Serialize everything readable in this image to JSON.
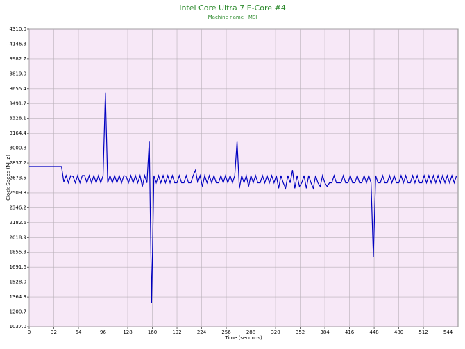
{
  "chart_data": {
    "type": "line",
    "title": "Intel Core Ultra 7 E-Core #4",
    "subtitle": "Machine name : MSI",
    "xlabel": "Time (seconds)",
    "ylabel": "Clock Speed (MHz)",
    "xlim": [
      0,
      557
    ],
    "ylim": [
      1037.0,
      4310.0
    ],
    "xticks": [
      0,
      32,
      64,
      96,
      128,
      160,
      192,
      224,
      256,
      288,
      320,
      352,
      384,
      416,
      448,
      480,
      512,
      544
    ],
    "yticks": [
      {
        "value": 1037.0,
        "label": "1037.0"
      },
      1200.7,
      1364.3,
      {
        "value": 1528.0,
        "label": "1528.0"
      },
      1691.6,
      1855.3,
      2018.9,
      2182.6,
      2346.2,
      2509.8,
      2673.5,
      2837.2,
      3000.8,
      3164.4,
      3328.1,
      3491.7,
      3655.4,
      {
        "value": 3819.0,
        "label": "3819.0"
      },
      3982.7,
      4146.3,
      {
        "value": 4310.0,
        "label": "4310.0"
      }
    ],
    "grid": true,
    "x": [
      0,
      3,
      6,
      9,
      12,
      15,
      18,
      21,
      24,
      27,
      30,
      33,
      36,
      39,
      42,
      45,
      48,
      51,
      54,
      57,
      60,
      63,
      66,
      69,
      72,
      75,
      78,
      81,
      84,
      87,
      90,
      93,
      96,
      99,
      102,
      105,
      108,
      111,
      114,
      117,
      120,
      123,
      126,
      129,
      132,
      135,
      138,
      141,
      144,
      147,
      150,
      153,
      156,
      159,
      162,
      165,
      168,
      171,
      174,
      177,
      180,
      183,
      186,
      189,
      192,
      195,
      198,
      201,
      204,
      207,
      210,
      213,
      216,
      219,
      222,
      225,
      228,
      231,
      234,
      237,
      240,
      243,
      246,
      249,
      252,
      255,
      258,
      261,
      264,
      267,
      270,
      273,
      276,
      279,
      282,
      285,
      288,
      291,
      294,
      297,
      300,
      303,
      306,
      309,
      312,
      315,
      318,
      321,
      324,
      327,
      330,
      333,
      336,
      339,
      342,
      345,
      348,
      351,
      354,
      357,
      360,
      363,
      366,
      369,
      372,
      375,
      378,
      381,
      384,
      387,
      390,
      393,
      396,
      399,
      402,
      405,
      408,
      411,
      414,
      417,
      420,
      423,
      426,
      429,
      432,
      435,
      438,
      441,
      444,
      447,
      450,
      453,
      456,
      459,
      462,
      465,
      468,
      471,
      474,
      477,
      480,
      483,
      486,
      489,
      492,
      495,
      498,
      501,
      504,
      507,
      510,
      513,
      516,
      519,
      522,
      525,
      528,
      531,
      534,
      537,
      540,
      543,
      546,
      549,
      552,
      555
    ],
    "series": [
      {
        "name": "Clock Speed",
        "color": "#0000c0",
        "values": [
          2800,
          2800,
          2800,
          2800,
          2800,
          2800,
          2800,
          2800,
          2800,
          2800,
          2800,
          2800,
          2800,
          2800,
          2800,
          2630,
          2700,
          2620,
          2700,
          2690,
          2620,
          2700,
          2620,
          2700,
          2700,
          2620,
          2700,
          2620,
          2700,
          2620,
          2700,
          2620,
          2700,
          3610,
          2620,
          2700,
          2620,
          2700,
          2620,
          2700,
          2620,
          2700,
          2690,
          2620,
          2700,
          2620,
          2700,
          2620,
          2700,
          2580,
          2700,
          2620,
          3080,
          1300,
          2700,
          2620,
          2700,
          2620,
          2700,
          2620,
          2700,
          2620,
          2700,
          2620,
          2620,
          2700,
          2620,
          2620,
          2700,
          2620,
          2620,
          2700,
          2760,
          2620,
          2700,
          2580,
          2700,
          2620,
          2700,
          2620,
          2700,
          2620,
          2620,
          2700,
          2620,
          2700,
          2620,
          2700,
          2620,
          2700,
          3080,
          2560,
          2700,
          2620,
          2700,
          2580,
          2700,
          2620,
          2700,
          2620,
          2620,
          2700,
          2620,
          2700,
          2620,
          2700,
          2620,
          2700,
          2560,
          2700,
          2620,
          2560,
          2700,
          2620,
          2760,
          2560,
          2700,
          2580,
          2620,
          2700,
          2560,
          2700,
          2620,
          2560,
          2700,
          2620,
          2580,
          2700,
          2620,
          2580,
          2620,
          2620,
          2700,
          2620,
          2620,
          2620,
          2700,
          2620,
          2620,
          2700,
          2620,
          2620,
          2700,
          2620,
          2620,
          2700,
          2620,
          2700,
          2620,
          1800,
          2700,
          2620,
          2620,
          2700,
          2620,
          2620,
          2700,
          2620,
          2700,
          2620,
          2620,
          2700,
          2620,
          2700,
          2620,
          2620,
          2700,
          2620,
          2700,
          2620,
          2620,
          2700,
          2620,
          2700,
          2620,
          2700,
          2620,
          2700,
          2620,
          2700,
          2620,
          2700,
          2620,
          2700,
          2620,
          2700
        ]
      }
    ]
  }
}
